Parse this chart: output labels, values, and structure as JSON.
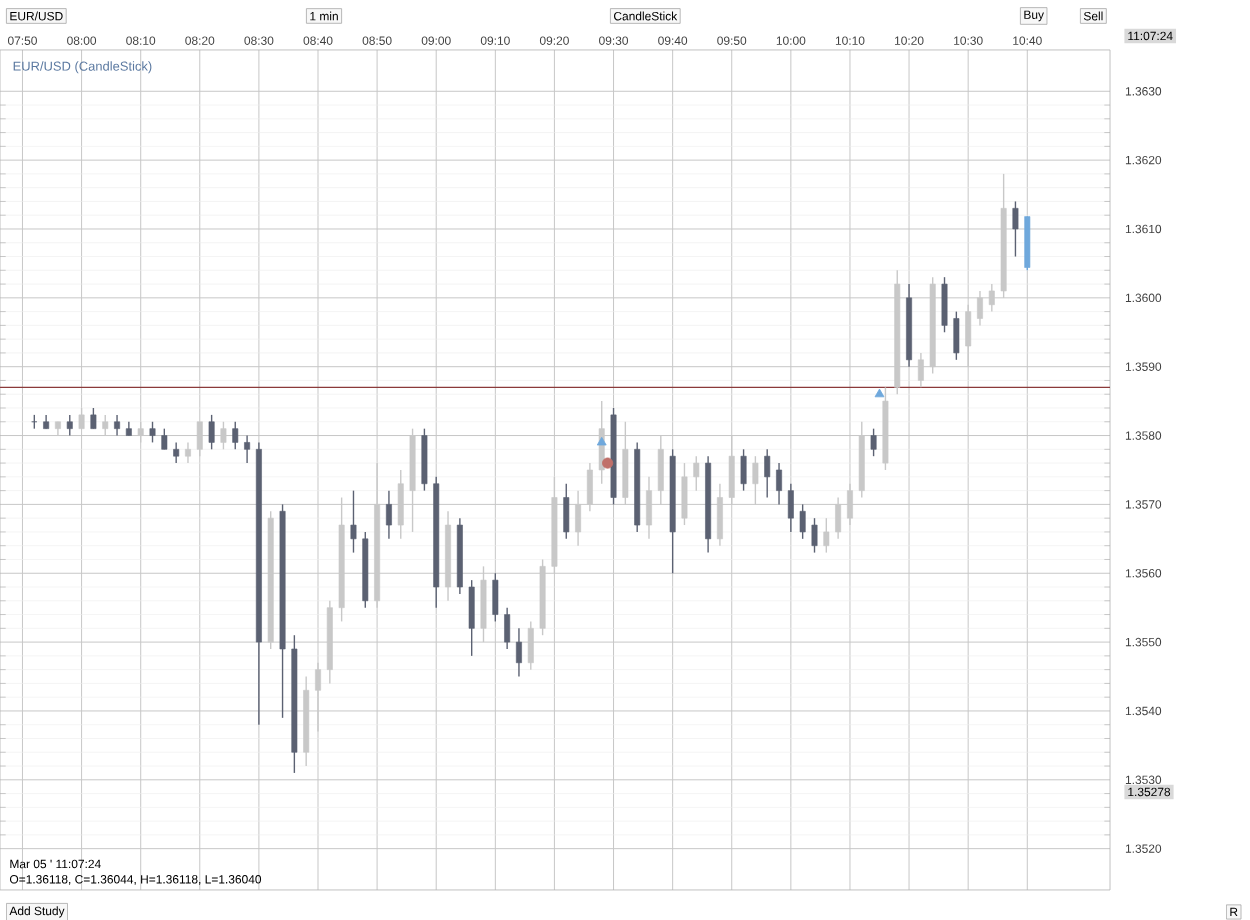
{
  "chart_data": {
    "type": "candlestick",
    "title": "EUR/USD (CandleStick)",
    "x": [
      7.8667,
      7.9,
      7.9333,
      7.9667,
      8.0,
      8.0333,
      8.0667,
      8.1,
      8.1333,
      8.1667,
      8.2,
      8.2333,
      8.2667,
      8.3,
      8.3333,
      8.3667,
      8.4,
      8.4333,
      8.4667,
      8.5,
      8.5333,
      8.5667,
      8.6,
      8.6333,
      8.6667,
      8.7,
      8.7333,
      8.7667,
      8.8,
      8.8333,
      8.8667,
      8.9,
      8.9333,
      8.9667,
      9.0,
      9.0333,
      9.0667,
      9.1,
      9.1333,
      9.1667,
      9.2,
      9.2333,
      9.2667,
      9.3,
      9.3333,
      9.3667,
      9.4,
      9.4333,
      9.4667,
      9.5,
      9.5333,
      9.5667,
      9.6,
      9.6333,
      9.6667,
      9.7,
      9.7333,
      9.7667,
      9.8,
      9.8333,
      9.8667,
      9.9,
      9.9333,
      9.9667,
      10.0,
      10.0333,
      10.0667,
      10.1,
      10.1333,
      10.1667,
      10.2,
      10.2333,
      10.2667,
      10.3,
      10.3333,
      10.3667,
      10.4,
      10.4333,
      10.4667,
      10.5,
      10.5333,
      10.5667,
      10.6,
      10.6333,
      10.6667
    ],
    "ohlc": [
      [
        1.3582,
        1.3583,
        1.3581,
        1.3582
      ],
      [
        1.3582,
        1.3583,
        1.3581,
        1.3581
      ],
      [
        1.3581,
        1.3582,
        1.358,
        1.3582
      ],
      [
        1.3582,
        1.3583,
        1.358,
        1.3581
      ],
      [
        1.3581,
        1.3584,
        1.3581,
        1.3583
      ],
      [
        1.3583,
        1.3584,
        1.3581,
        1.3581
      ],
      [
        1.3581,
        1.3583,
        1.358,
        1.3582
      ],
      [
        1.3582,
        1.3583,
        1.358,
        1.3581
      ],
      [
        1.3581,
        1.3582,
        1.358,
        1.358
      ],
      [
        1.358,
        1.3582,
        1.3579,
        1.3581
      ],
      [
        1.3581,
        1.3582,
        1.3579,
        1.358
      ],
      [
        1.358,
        1.3581,
        1.3578,
        1.3578
      ],
      [
        1.3578,
        1.3579,
        1.3576,
        1.3577
      ],
      [
        1.3577,
        1.3579,
        1.3576,
        1.3578
      ],
      [
        1.3578,
        1.3582,
        1.3577,
        1.3582
      ],
      [
        1.3582,
        1.3583,
        1.3578,
        1.3579
      ],
      [
        1.3579,
        1.3582,
        1.3578,
        1.3581
      ],
      [
        1.3581,
        1.3582,
        1.3578,
        1.3579
      ],
      [
        1.3579,
        1.358,
        1.3576,
        1.3578
      ],
      [
        1.3578,
        1.3579,
        1.3538,
        1.355
      ],
      [
        1.355,
        1.3569,
        1.3549,
        1.3568
      ],
      [
        1.3569,
        1.357,
        1.3539,
        1.3549
      ],
      [
        1.3549,
        1.3551,
        1.3531,
        1.3534
      ],
      [
        1.3534,
        1.3545,
        1.3532,
        1.3543
      ],
      [
        1.3543,
        1.3547,
        1.3537,
        1.3546
      ],
      [
        1.3546,
        1.3556,
        1.3544,
        1.3555
      ],
      [
        1.3555,
        1.3571,
        1.3553,
        1.3567
      ],
      [
        1.3567,
        1.3572,
        1.3563,
        1.3565
      ],
      [
        1.3565,
        1.3566,
        1.3555,
        1.3556
      ],
      [
        1.3556,
        1.3576,
        1.3555,
        1.357
      ],
      [
        1.357,
        1.3572,
        1.3565,
        1.3567
      ],
      [
        1.3567,
        1.3575,
        1.3565,
        1.3573
      ],
      [
        1.3572,
        1.3581,
        1.3566,
        1.358
      ],
      [
        1.358,
        1.3581,
        1.3572,
        1.3573
      ],
      [
        1.3573,
        1.3574,
        1.3555,
        1.3558
      ],
      [
        1.3558,
        1.3569,
        1.3556,
        1.3567
      ],
      [
        1.3567,
        1.3568,
        1.3557,
        1.3558
      ],
      [
        1.3558,
        1.3559,
        1.3548,
        1.3552
      ],
      [
        1.3552,
        1.3561,
        1.355,
        1.3559
      ],
      [
        1.3559,
        1.356,
        1.3553,
        1.3554
      ],
      [
        1.3554,
        1.3555,
        1.3549,
        1.355
      ],
      [
        1.355,
        1.3552,
        1.3545,
        1.3547
      ],
      [
        1.3547,
        1.3553,
        1.3546,
        1.3552
      ],
      [
        1.3552,
        1.3562,
        1.3551,
        1.3561
      ],
      [
        1.3561,
        1.3574,
        1.356,
        1.3571
      ],
      [
        1.3571,
        1.3573,
        1.3565,
        1.3566
      ],
      [
        1.3566,
        1.3572,
        1.3564,
        1.357
      ],
      [
        1.357,
        1.3576,
        1.3569,
        1.3575
      ],
      [
        1.3575,
        1.3585,
        1.3573,
        1.3581
      ],
      [
        1.3583,
        1.3584,
        1.357,
        1.3571
      ],
      [
        1.3571,
        1.3582,
        1.357,
        1.3578
      ],
      [
        1.3578,
        1.3579,
        1.3566,
        1.3567
      ],
      [
        1.3567,
        1.3574,
        1.3565,
        1.3572
      ],
      [
        1.3572,
        1.358,
        1.357,
        1.3578
      ],
      [
        1.3577,
        1.3578,
        1.356,
        1.3566
      ],
      [
        1.3568,
        1.3576,
        1.3567,
        1.3574
      ],
      [
        1.3574,
        1.3577,
        1.3572,
        1.3576
      ],
      [
        1.3576,
        1.3577,
        1.3563,
        1.3565
      ],
      [
        1.3565,
        1.3573,
        1.3564,
        1.3571
      ],
      [
        1.3571,
        1.358,
        1.357,
        1.3577
      ],
      [
        1.3577,
        1.3578,
        1.3572,
        1.3573
      ],
      [
        1.3573,
        1.3577,
        1.357,
        1.3576
      ],
      [
        1.3577,
        1.3578,
        1.3571,
        1.3574
      ],
      [
        1.3575,
        1.3576,
        1.357,
        1.3572
      ],
      [
        1.3572,
        1.3573,
        1.3566,
        1.3568
      ],
      [
        1.3569,
        1.357,
        1.3565,
        1.3566
      ],
      [
        1.3567,
        1.3568,
        1.3563,
        1.3564
      ],
      [
        1.3564,
        1.3568,
        1.3563,
        1.3566
      ],
      [
        1.3566,
        1.3571,
        1.3565,
        1.357
      ],
      [
        1.3568,
        1.3573,
        1.3567,
        1.3572
      ],
      [
        1.3572,
        1.3582,
        1.3571,
        1.358
      ],
      [
        1.358,
        1.3581,
        1.3577,
        1.3578
      ],
      [
        1.3576,
        1.3587,
        1.3575,
        1.3585
      ],
      [
        1.3587,
        1.3604,
        1.3586,
        1.3602
      ],
      [
        1.36,
        1.3602,
        1.359,
        1.3591
      ],
      [
        1.3588,
        1.3592,
        1.3587,
        1.3591
      ],
      [
        1.359,
        1.3603,
        1.3589,
        1.3602
      ],
      [
        1.3602,
        1.3603,
        1.3595,
        1.3596
      ],
      [
        1.3597,
        1.3598,
        1.3591,
        1.3592
      ],
      [
        1.3593,
        1.3599,
        1.359,
        1.3598
      ],
      [
        1.3597,
        1.3601,
        1.3596,
        1.36
      ],
      [
        1.3599,
        1.3602,
        1.3598,
        1.3601
      ],
      [
        1.3601,
        1.3618,
        1.36,
        1.3613
      ],
      [
        1.3613,
        1.3614,
        1.3606,
        1.361
      ],
      [
        1.36118,
        1.36118,
        1.3604,
        1.36044
      ]
    ],
    "colors": [
      "#5b6172",
      "#5b6172",
      "#c8c8c8",
      "#5b6172",
      "#c8c8c8",
      "#5b6172",
      "#c8c8c8",
      "#5b6172",
      "#5b6172",
      "#c8c8c8",
      "#5b6172",
      "#5b6172",
      "#5b6172",
      "#c8c8c8",
      "#c8c8c8",
      "#5b6172",
      "#c8c8c8",
      "#5b6172",
      "#5b6172",
      "#5b6172",
      "#c8c8c8",
      "#5b6172",
      "#5b6172",
      "#c8c8c8",
      "#c8c8c8",
      "#c8c8c8",
      "#c8c8c8",
      "#5b6172",
      "#5b6172",
      "#c8c8c8",
      "#5b6172",
      "#c8c8c8",
      "#c8c8c8",
      "#5b6172",
      "#5b6172",
      "#c8c8c8",
      "#5b6172",
      "#5b6172",
      "#c8c8c8",
      "#5b6172",
      "#5b6172",
      "#5b6172",
      "#c8c8c8",
      "#c8c8c8",
      "#c8c8c8",
      "#5b6172",
      "#c8c8c8",
      "#c8c8c8",
      "#c8c8c8",
      "#5b6172",
      "#c8c8c8",
      "#5b6172",
      "#c8c8c8",
      "#c8c8c8",
      "#5b6172",
      "#c8c8c8",
      "#c8c8c8",
      "#5b6172",
      "#c8c8c8",
      "#c8c8c8",
      "#5b6172",
      "#c8c8c8",
      "#5b6172",
      "#5b6172",
      "#5b6172",
      "#5b6172",
      "#5b6172",
      "#c8c8c8",
      "#c8c8c8",
      "#c8c8c8",
      "#c8c8c8",
      "#5b6172",
      "#c8c8c8",
      "#c8c8c8",
      "#5b6172",
      "#c8c8c8",
      "#c8c8c8",
      "#5b6172",
      "#5b6172",
      "#c8c8c8",
      "#c8c8c8",
      "#c8c8c8",
      "#c8c8c8",
      "#5b6172",
      "#6fa8dc"
    ],
    "series": [
      {
        "type": "scatter",
        "marker": "triangle",
        "color": "#6fa8dc",
        "x": [
          9.4667,
          10.25
        ],
        "values": [
          1.3579,
          1.3586
        ]
      },
      {
        "type": "scatter",
        "marker": "circle",
        "color": "#c0706a",
        "x": [
          9.4833
        ],
        "values": [
          1.3576
        ]
      }
    ],
    "xlim": [
      7.77,
      10.9
    ],
    "xticks": [
      {
        "value": 7.8333,
        "label": "07:50"
      },
      {
        "value": 8.0,
        "label": "08:00"
      },
      {
        "value": 8.1667,
        "label": "08:10"
      },
      {
        "value": 8.3333,
        "label": "08:20"
      },
      {
        "value": 8.5,
        "label": "08:30"
      },
      {
        "value": 8.6667,
        "label": "08:40"
      },
      {
        "value": 8.8333,
        "label": "08:50"
      },
      {
        "value": 9.0,
        "label": "09:00"
      },
      {
        "value": 9.1667,
        "label": "09:10"
      },
      {
        "value": 9.3333,
        "label": "09:20"
      },
      {
        "value": 9.5,
        "label": "09:30"
      },
      {
        "value": 9.6667,
        "label": "09:40"
      },
      {
        "value": 9.8333,
        "label": "09:50"
      },
      {
        "value": 10.0,
        "label": "10:00"
      },
      {
        "value": 10.1667,
        "label": "10:10"
      },
      {
        "value": 10.3333,
        "label": "10:20"
      },
      {
        "value": 10.5,
        "label": "10:30"
      },
      {
        "value": 10.6667,
        "label": "10:40"
      }
    ],
    "ylim": [
      1.3514,
      1.3636
    ],
    "yticks": [
      {
        "value": 1.352,
        "label": "1.3520"
      },
      {
        "value": 1.353,
        "label": "1.3530"
      },
      {
        "value": 1.354,
        "label": "1.3540"
      },
      {
        "value": 1.355,
        "label": "1.3550"
      },
      {
        "value": 1.356,
        "label": "1.3560"
      },
      {
        "value": 1.357,
        "label": "1.3570"
      },
      {
        "value": 1.358,
        "label": "1.3580"
      },
      {
        "value": 1.359,
        "label": "1.3590"
      },
      {
        "value": 1.36,
        "label": "1.3600"
      },
      {
        "value": 1.361,
        "label": "1.3610"
      },
      {
        "value": 1.362,
        "label": "1.3620"
      },
      {
        "value": 1.363,
        "label": "1.3630"
      }
    ],
    "grid": true,
    "ref_lines": [
      {
        "axis": "y",
        "value": 1.3587,
        "color": "#8b3a3a"
      }
    ],
    "annotations": [
      "EUR/USD",
      "1 min",
      "CandleStick",
      "Buy",
      "Sell",
      "11:07:24",
      "1.35278",
      "Mar 05 ' 11:07:24",
      "O=1.36118, C=1.36044, H=1.36118, L=1.36040",
      "Add Study",
      "R"
    ]
  }
}
